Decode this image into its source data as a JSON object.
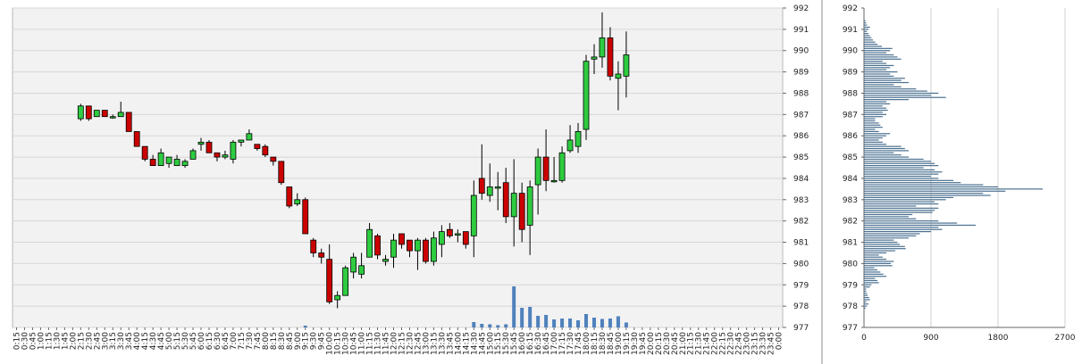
{
  "chart_data": [
    {
      "type": "candlestick",
      "title": "",
      "grid": true,
      "ylim": [
        977,
        992
      ],
      "y_ticks": [
        992,
        991,
        990,
        989,
        988,
        987,
        986,
        985,
        984,
        983,
        982,
        981,
        980,
        979,
        978,
        977
      ],
      "x_labels": [
        "0:15",
        "0:30",
        "0:45",
        "1:00",
        "1:15",
        "1:30",
        "1:45",
        "2:00",
        "2:15",
        "2:30",
        "2:45",
        "3:00",
        "3:15",
        "3:30",
        "3:45",
        "4:00",
        "4:15",
        "4:30",
        "4:45",
        "5:00",
        "5:15",
        "5:30",
        "5:45",
        "6:00",
        "6:15",
        "6:30",
        "6:45",
        "7:00",
        "7:15",
        "7:30",
        "7:45",
        "8:00",
        "8:15",
        "8:30",
        "8:45",
        "9:00",
        "9:15",
        "9:30",
        "9:45",
        "10:00",
        "10:15",
        "10:30",
        "10:45",
        "11:00",
        "11:15",
        "11:30",
        "11:45",
        "12:00",
        "12:15",
        "12:30",
        "12:45",
        "13:00",
        "13:15",
        "13:30",
        "13:45",
        "14:00",
        "14:15",
        "14:30",
        "14:45",
        "15:00",
        "15:15",
        "15:30",
        "15:45",
        "16:00",
        "16:15",
        "16:30",
        "16:45",
        "17:00",
        "17:15",
        "17:30",
        "17:45",
        "18:00",
        "18:15",
        "18:30",
        "18:45",
        "19:00",
        "19:15",
        "19:30",
        "19:45",
        "20:00",
        "20:15",
        "20:30",
        "20:45",
        "21:00",
        "21:15",
        "21:30",
        "21:45",
        "22:00",
        "22:15",
        "22:30",
        "22:45",
        "23:00",
        "23:15",
        "23:30",
        "23:45",
        "0:00"
      ],
      "candles": [
        {
          "t": "2:15",
          "o": 986.8,
          "h": 987.5,
          "l": 986.7,
          "c": 987.4
        },
        {
          "t": "2:30",
          "o": 987.4,
          "h": 987.4,
          "l": 986.7,
          "c": 986.8
        },
        {
          "t": "2:45",
          "o": 986.9,
          "h": 987.2,
          "l": 986.9,
          "c": 987.2
        },
        {
          "t": "3:00",
          "o": 987.2,
          "h": 987.2,
          "l": 986.9,
          "c": 986.9
        },
        {
          "t": "3:15",
          "o": 986.9,
          "h": 987.0,
          "l": 986.8,
          "c": 986.9
        },
        {
          "t": "3:30",
          "o": 986.9,
          "h": 987.6,
          "l": 986.9,
          "c": 987.1
        },
        {
          "t": "3:45",
          "o": 987.1,
          "h": 987.1,
          "l": 986.2,
          "c": 986.2
        },
        {
          "t": "4:00",
          "o": 986.2,
          "h": 986.2,
          "l": 985.5,
          "c": 985.5
        },
        {
          "t": "4:15",
          "o": 985.5,
          "h": 985.5,
          "l": 984.8,
          "c": 984.9
        },
        {
          "t": "4:30",
          "o": 984.9,
          "h": 985.1,
          "l": 984.6,
          "c": 984.6
        },
        {
          "t": "4:45",
          "o": 984.6,
          "h": 985.4,
          "l": 984.6,
          "c": 985.2
        },
        {
          "t": "5:00",
          "o": 984.7,
          "h": 985.0,
          "l": 984.5,
          "c": 985.0
        },
        {
          "t": "5:15",
          "o": 984.6,
          "h": 985.1,
          "l": 984.6,
          "c": 984.9
        },
        {
          "t": "5:30",
          "o": 984.6,
          "h": 984.9,
          "l": 984.5,
          "c": 984.8
        },
        {
          "t": "5:45",
          "o": 984.9,
          "h": 985.4,
          "l": 984.9,
          "c": 985.3
        },
        {
          "t": "6:00",
          "o": 985.6,
          "h": 985.9,
          "l": 985.3,
          "c": 985.7
        },
        {
          "t": "6:15",
          "o": 985.7,
          "h": 985.8,
          "l": 985.2,
          "c": 985.2
        },
        {
          "t": "6:30",
          "o": 985.2,
          "h": 985.2,
          "l": 984.8,
          "c": 985.0
        },
        {
          "t": "6:45",
          "o": 985.0,
          "h": 985.3,
          "l": 984.9,
          "c": 985.1
        },
        {
          "t": "7:00",
          "o": 984.9,
          "h": 985.8,
          "l": 984.7,
          "c": 985.7
        },
        {
          "t": "7:15",
          "o": 985.7,
          "h": 985.8,
          "l": 985.5,
          "c": 985.8
        },
        {
          "t": "7:30",
          "o": 985.8,
          "h": 986.3,
          "l": 985.8,
          "c": 986.1
        },
        {
          "t": "7:45",
          "o": 985.6,
          "h": 985.6,
          "l": 985.3,
          "c": 985.4
        },
        {
          "t": "8:00",
          "o": 985.5,
          "h": 985.6,
          "l": 985.0,
          "c": 985.1
        },
        {
          "t": "8:15",
          "o": 985.0,
          "h": 985.0,
          "l": 984.6,
          "c": 984.8
        },
        {
          "t": "8:30",
          "o": 984.8,
          "h": 984.8,
          "l": 983.7,
          "c": 983.8
        },
        {
          "t": "8:45",
          "o": 983.6,
          "h": 983.6,
          "l": 982.6,
          "c": 982.7
        },
        {
          "t": "9:00",
          "o": 982.8,
          "h": 983.3,
          "l": 982.7,
          "c": 983.0
        },
        {
          "t": "9:15",
          "o": 983.0,
          "h": 983.1,
          "l": 981.4,
          "c": 981.4
        },
        {
          "t": "9:30",
          "o": 981.1,
          "h": 981.2,
          "l": 980.3,
          "c": 980.5
        },
        {
          "t": "9:45",
          "o": 980.5,
          "h": 980.7,
          "l": 980.0,
          "c": 980.3
        },
        {
          "t": "10:00",
          "o": 980.2,
          "h": 980.9,
          "l": 978.1,
          "c": 978.2
        },
        {
          "t": "10:15",
          "o": 978.3,
          "h": 978.7,
          "l": 977.9,
          "c": 978.5
        },
        {
          "t": "10:30",
          "o": 978.5,
          "h": 979.9,
          "l": 978.5,
          "c": 979.8
        },
        {
          "t": "10:45",
          "o": 979.6,
          "h": 980.5,
          "l": 979.3,
          "c": 980.3
        },
        {
          "t": "11:00",
          "o": 979.5,
          "h": 980.5,
          "l": 979.3,
          "c": 979.9
        },
        {
          "t": "11:15",
          "o": 980.3,
          "h": 981.9,
          "l": 980.3,
          "c": 981.6
        },
        {
          "t": "11:30",
          "o": 981.3,
          "h": 981.4,
          "l": 980.2,
          "c": 980.4
        },
        {
          "t": "11:45",
          "o": 980.1,
          "h": 980.4,
          "l": 979.9,
          "c": 980.2
        },
        {
          "t": "12:00",
          "o": 980.3,
          "h": 981.4,
          "l": 979.8,
          "c": 981.1
        },
        {
          "t": "12:15",
          "o": 981.4,
          "h": 981.4,
          "l": 980.7,
          "c": 980.9
        },
        {
          "t": "12:30",
          "o": 981.1,
          "h": 981.1,
          "l": 980.3,
          "c": 980.6
        },
        {
          "t": "12:45",
          "o": 980.6,
          "h": 981.2,
          "l": 979.7,
          "c": 981.1
        },
        {
          "t": "13:00",
          "o": 981.1,
          "h": 981.2,
          "l": 980.0,
          "c": 980.1
        },
        {
          "t": "13:15",
          "o": 980.1,
          "h": 981.5,
          "l": 979.9,
          "c": 981.2
        },
        {
          "t": "13:30",
          "o": 980.9,
          "h": 981.8,
          "l": 980.3,
          "c": 981.5
        },
        {
          "t": "13:45",
          "o": 981.6,
          "h": 981.9,
          "l": 981.2,
          "c": 981.3
        },
        {
          "t": "14:00",
          "o": 981.4,
          "h": 981.6,
          "l": 981.0,
          "c": 981.4
        },
        {
          "t": "14:15",
          "o": 981.5,
          "h": 981.5,
          "l": 980.7,
          "c": 980.9
        },
        {
          "t": "14:30",
          "o": 981.3,
          "h": 983.9,
          "l": 980.3,
          "c": 983.2
        },
        {
          "t": "14:45",
          "o": 984.0,
          "h": 985.6,
          "l": 983.0,
          "c": 983.3
        },
        {
          "t": "15:00",
          "o": 983.2,
          "h": 984.7,
          "l": 982.9,
          "c": 983.6
        },
        {
          "t": "15:15",
          "o": 983.6,
          "h": 984.3,
          "l": 982.5,
          "c": 983.6
        },
        {
          "t": "15:30",
          "o": 983.8,
          "h": 984.5,
          "l": 981.9,
          "c": 982.2
        },
        {
          "t": "15:45",
          "o": 982.2,
          "h": 984.9,
          "l": 980.8,
          "c": 983.3
        },
        {
          "t": "16:00",
          "o": 983.3,
          "h": 983.8,
          "l": 981.0,
          "c": 981.6
        },
        {
          "t": "16:15",
          "o": 981.8,
          "h": 983.9,
          "l": 980.4,
          "c": 983.6
        },
        {
          "t": "16:30",
          "o": 983.7,
          "h": 985.4,
          "l": 982.3,
          "c": 985.0
        },
        {
          "t": "16:45",
          "o": 985.0,
          "h": 986.3,
          "l": 983.4,
          "c": 983.9
        },
        {
          "t": "17:00",
          "o": 983.9,
          "h": 985.0,
          "l": 983.8,
          "c": 983.9
        },
        {
          "t": "17:15",
          "o": 983.9,
          "h": 985.5,
          "l": 983.8,
          "c": 985.2
        },
        {
          "t": "17:30",
          "o": 985.3,
          "h": 986.5,
          "l": 985.2,
          "c": 985.8
        },
        {
          "t": "17:45",
          "o": 985.5,
          "h": 986.6,
          "l": 985.2,
          "c": 986.2
        },
        {
          "t": "18:00",
          "o": 986.3,
          "h": 989.8,
          "l": 985.8,
          "c": 989.5
        },
        {
          "t": "18:15",
          "o": 989.6,
          "h": 990.3,
          "l": 988.9,
          "c": 989.7
        },
        {
          "t": "18:30",
          "o": 989.7,
          "h": 991.8,
          "l": 989.2,
          "c": 990.6
        },
        {
          "t": "18:45",
          "o": 990.6,
          "h": 991.1,
          "l": 988.6,
          "c": 988.8
        },
        {
          "t": "19:00",
          "o": 988.7,
          "h": 989.5,
          "l": 987.2,
          "c": 988.9
        },
        {
          "t": "19:15",
          "o": 988.8,
          "h": 990.9,
          "l": 987.8,
          "c": 989.8
        }
      ],
      "volume": [
        {
          "t": "9:15",
          "v": 20
        },
        {
          "t": "14:30",
          "v": 60
        },
        {
          "t": "14:45",
          "v": 40
        },
        {
          "t": "15:00",
          "v": 35
        },
        {
          "t": "15:15",
          "v": 25
        },
        {
          "t": "15:30",
          "v": 35
        },
        {
          "t": "15:45",
          "v": 460
        },
        {
          "t": "16:00",
          "v": 220
        },
        {
          "t": "16:15",
          "v": 230
        },
        {
          "t": "16:30",
          "v": 130
        },
        {
          "t": "16:45",
          "v": 140
        },
        {
          "t": "17:00",
          "v": 90
        },
        {
          "t": "17:15",
          "v": 100
        },
        {
          "t": "17:30",
          "v": 100
        },
        {
          "t": "17:45",
          "v": 80
        },
        {
          "t": "18:00",
          "v": 150
        },
        {
          "t": "18:15",
          "v": 110
        },
        {
          "t": "18:30",
          "v": 95
        },
        {
          "t": "18:45",
          "v": 100
        },
        {
          "t": "19:00",
          "v": 125
        },
        {
          "t": "19:15",
          "v": 55
        }
      ],
      "volume_max": 1000
    },
    {
      "type": "bar",
      "orientation": "horizontal",
      "title": "",
      "grid": true,
      "xlim": [
        0,
        2700
      ],
      "x_ticks": [
        0,
        900,
        1800,
        2700
      ],
      "ylim": [
        977,
        992
      ],
      "y_ticks": [
        992,
        991,
        990,
        989,
        988,
        987,
        986,
        985,
        984,
        983,
        982,
        981,
        980,
        979,
        978,
        977
      ],
      "price_start": 977.9,
      "price_step": 0.1,
      "values": [
        20,
        40,
        60,
        30,
        80,
        70,
        50,
        40,
        30,
        30,
        80,
        100,
        200,
        180,
        150,
        300,
        260,
        220,
        180,
        140,
        380,
        360,
        400,
        300,
        250,
        200,
        300,
        420,
        560,
        550,
        480,
        450,
        400,
        600,
        700,
        750,
        900,
        1050,
        1000,
        1500,
        1250,
        1000,
        700,
        600,
        650,
        920,
        950,
        1000,
        700,
        1000,
        950,
        1100,
        1200,
        1700,
        1600,
        1900,
        2400,
        1800,
        1600,
        1300,
        1200,
        1000,
        900,
        1000,
        1050,
        950,
        800,
        1000,
        950,
        900,
        800,
        600,
        500,
        400,
        600,
        550,
        500,
        300,
        250,
        200,
        250,
        300,
        350,
        200,
        150,
        250,
        220,
        200,
        150,
        150,
        250,
        300,
        250,
        320,
        300,
        250,
        350,
        300,
        600,
        1100,
        900,
        1000,
        850,
        700,
        500,
        400,
        600,
        500,
        550,
        400,
        350,
        450,
        300,
        350,
        400,
        300,
        250,
        500,
        450,
        400,
        300,
        350,
        380,
        240,
        180,
        150,
        120,
        100,
        80,
        60,
        40,
        60,
        80,
        40,
        30,
        20
      ]
    }
  ]
}
